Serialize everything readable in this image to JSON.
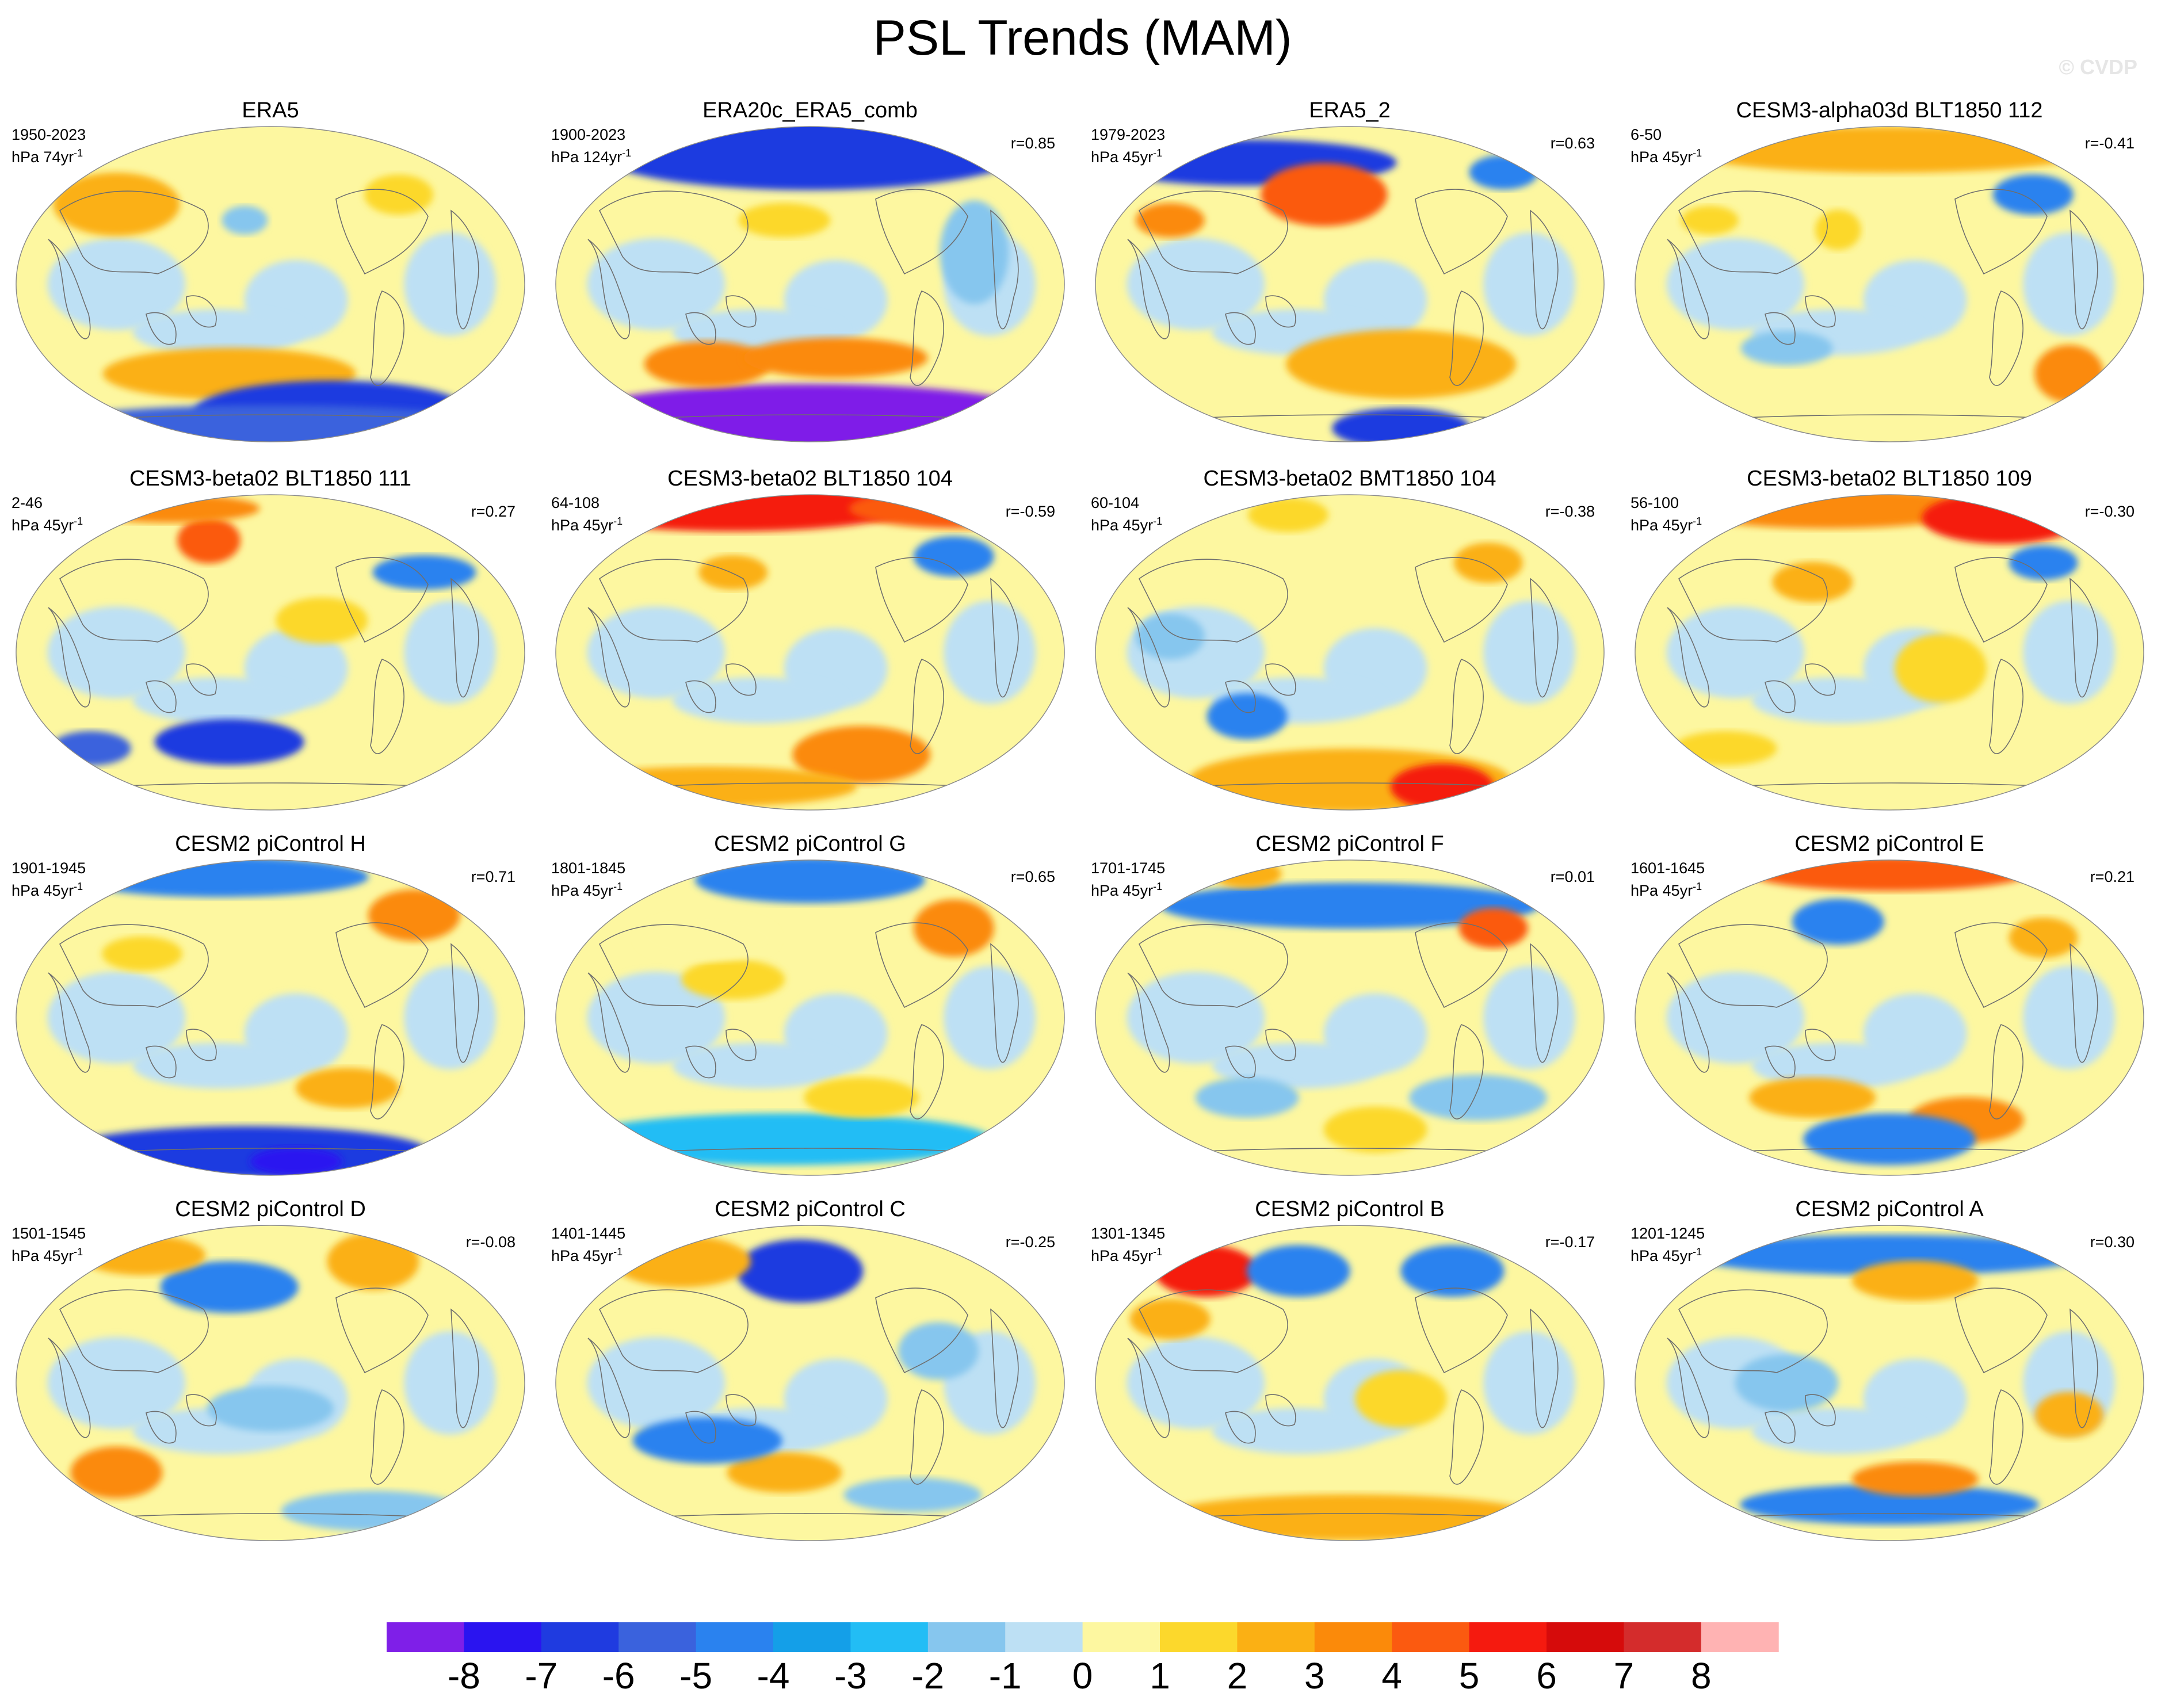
{
  "title": "PSL Trends (MAM)",
  "watermark": "© CVDP",
  "panels": [
    {
      "title": "ERA5",
      "period": "1950-2023",
      "units": "hPa 74yr",
      "units_sup": "-1",
      "r": ""
    },
    {
      "title": "ERA20c_ERA5_comb",
      "period": "1900-2023",
      "units": "hPa 124yr",
      "units_sup": "-1",
      "r": "r=0.85"
    },
    {
      "title": "ERA5_2",
      "period": "1979-2023",
      "units": "hPa 45yr",
      "units_sup": "-1",
      "r": "r=0.63"
    },
    {
      "title": "CESM3-alpha03d BLT1850 112",
      "period": "6-50",
      "units": "hPa 45yr",
      "units_sup": "-1",
      "r": "r=-0.41"
    },
    {
      "title": "CESM3-beta02 BLT1850 111",
      "period": "2-46",
      "units": "hPa 45yr",
      "units_sup": "-1",
      "r": "r=0.27"
    },
    {
      "title": "CESM3-beta02 BLT1850 104",
      "period": "64-108",
      "units": "hPa 45yr",
      "units_sup": "-1",
      "r": "r=-0.59"
    },
    {
      "title": "CESM3-beta02 BMT1850 104",
      "period": "60-104",
      "units": "hPa 45yr",
      "units_sup": "-1",
      "r": "r=-0.38"
    },
    {
      "title": "CESM3-beta02 BLT1850 109",
      "period": "56-100",
      "units": "hPa 45yr",
      "units_sup": "-1",
      "r": "r=-0.30"
    },
    {
      "title": "CESM2 piControl H",
      "period": "1901-1945",
      "units": "hPa 45yr",
      "units_sup": "-1",
      "r": "r=0.71"
    },
    {
      "title": "CESM2 piControl G",
      "period": "1801-1845",
      "units": "hPa 45yr",
      "units_sup": "-1",
      "r": "r=0.65"
    },
    {
      "title": "CESM2 piControl F",
      "period": "1701-1745",
      "units": "hPa 45yr",
      "units_sup": "-1",
      "r": "r=0.01"
    },
    {
      "title": "CESM2 piControl E",
      "period": "1601-1645",
      "units": "hPa 45yr",
      "units_sup": "-1",
      "r": "r=0.21"
    },
    {
      "title": "CESM2 piControl D",
      "period": "1501-1545",
      "units": "hPa 45yr",
      "units_sup": "-1",
      "r": "r=-0.08"
    },
    {
      "title": "CESM2 piControl C",
      "period": "1401-1445",
      "units": "hPa 45yr",
      "units_sup": "-1",
      "r": "r=-0.25"
    },
    {
      "title": "CESM2 piControl B",
      "period": "1301-1345",
      "units": "hPa 45yr",
      "units_sup": "-1",
      "r": "r=-0.17"
    },
    {
      "title": "CESM2 piControl A",
      "period": "1201-1245",
      "units": "hPa 45yr",
      "units_sup": "-1",
      "r": "r=0.30"
    }
  ],
  "colorbar": {
    "labels": [
      "-8",
      "-7",
      "-6",
      "-5",
      "-4",
      "-3",
      "-2",
      "-1",
      "0",
      "1",
      "2",
      "3",
      "4",
      "5",
      "6",
      "7",
      "8"
    ],
    "colors": [
      "#7f1fe8",
      "#2a14f0",
      "#1f3be0",
      "#3a62dd",
      "#2a82ef",
      "#149fe8",
      "#22bdf5",
      "#86c6ee",
      "#bde0f4",
      "#fdf7a0",
      "#fcd82c",
      "#fbb014",
      "#fb8a0a",
      "#fb5a10",
      "#f51a0f",
      "#d60b0b",
      "#d42c2c",
      "#ffb3b3"
    ]
  },
  "colors": {
    "neutral_positive": "#fdf7a0",
    "neutral_negative": "#bde0f4",
    "coastline": "#6e6e6e"
  }
}
